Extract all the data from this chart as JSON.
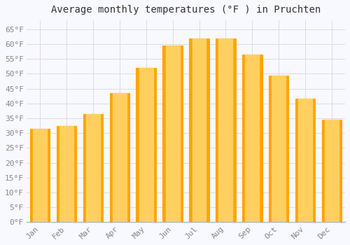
{
  "title": "Average monthly temperatures (°F ) in Pruchten",
  "months": [
    "Jan",
    "Feb",
    "Mar",
    "Apr",
    "May",
    "Jun",
    "Jul",
    "Aug",
    "Sep",
    "Oct",
    "Nov",
    "Dec"
  ],
  "values": [
    31.5,
    32.5,
    36.5,
    43.5,
    52.0,
    59.5,
    62.0,
    62.0,
    56.5,
    49.5,
    41.5,
    34.5
  ],
  "bar_color_center": "#FFD966",
  "bar_color_edge": "#FFA500",
  "background_color": "#F8F8FF",
  "plot_bg_color": "#F8F8FF",
  "grid_color": "#DDDDDD",
  "ylim": [
    0,
    68
  ],
  "yticks": [
    0,
    5,
    10,
    15,
    20,
    25,
    30,
    35,
    40,
    45,
    50,
    55,
    60,
    65
  ],
  "title_fontsize": 10,
  "tick_fontsize": 8,
  "tick_label_color": "#888888",
  "bar_width": 0.75
}
